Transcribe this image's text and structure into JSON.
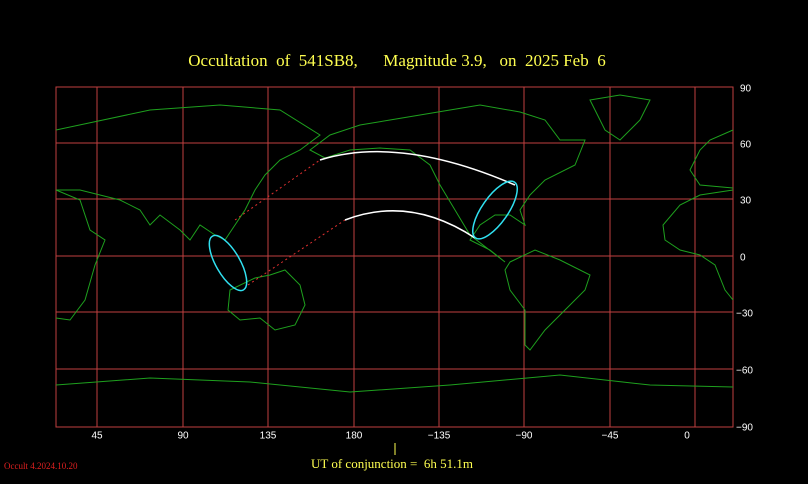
{
  "map": {
    "title": "Occultation  of  541SB8,      Magnitude 3.9,   on  2025 Feb  6",
    "longitude_labels": [
      "45",
      "90",
      "135",
      "180",
      "−135",
      "−90",
      "−45",
      "0"
    ],
    "latitude_labels": [
      "90",
      "60",
      "30",
      "0",
      "−30",
      "−60",
      "−90"
    ],
    "footer": "UT of conjunction =  6h 51.1m",
    "version": "Occult 4.2024.10.20"
  }
}
